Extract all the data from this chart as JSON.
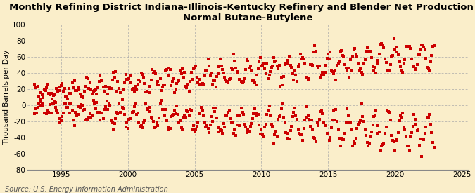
{
  "title": "Monthly Refining District Indiana-Illinois-Kentucky Refinery and Blender Net Production of\nNormal Butane-Butylene",
  "ylabel": "Thousand Barrels per Day",
  "source": "Source: U.S. Energy Information Administration",
  "xlim": [
    1992.5,
    2025.5
  ],
  "ylim": [
    -80,
    100
  ],
  "yticks": [
    -80,
    -60,
    -40,
    -20,
    0,
    20,
    40,
    60,
    80,
    100
  ],
  "xticks": [
    1995,
    2000,
    2005,
    2010,
    2015,
    2020,
    2025
  ],
  "marker_color": "#cc0000",
  "marker": "s",
  "marker_size": 10,
  "bg_color": "#faeeca",
  "grid_color": "#aaaaaa",
  "title_fontsize": 9.5,
  "label_fontsize": 7.5,
  "tick_fontsize": 7.5,
  "seed": 42,
  "start_year": 1993,
  "start_month": 1,
  "end_year": 2022,
  "end_month": 12
}
